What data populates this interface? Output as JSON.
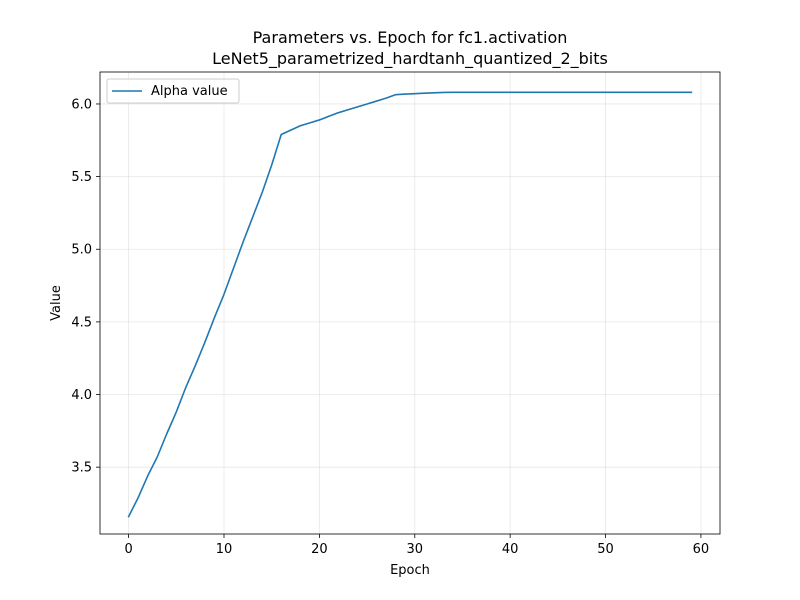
{
  "chart_data": {
    "type": "line",
    "title_lines": [
      "Parameters vs. Epoch for fc1.activation",
      "LeNet5_parametrized_hardtanh_quantized_2_bits"
    ],
    "xlabel": "Epoch",
    "ylabel": "Value",
    "xlim": [
      -3,
      62
    ],
    "ylim": [
      3.04,
      6.22
    ],
    "xticks": [
      0,
      10,
      20,
      30,
      40,
      50,
      60
    ],
    "yticks": [
      3.5,
      4.0,
      4.5,
      5.0,
      5.5,
      6.0
    ],
    "ytick_labels": [
      "3.5",
      "4.0",
      "4.5",
      "5.0",
      "5.5",
      "6.0"
    ],
    "grid": true,
    "legend_placement": "top-left",
    "series": [
      {
        "name": "Alpha value",
        "color": "#1f77b4",
        "x": [
          0,
          1,
          2,
          3,
          4,
          5,
          6,
          7,
          8,
          9,
          10,
          11,
          12,
          13,
          14,
          15,
          16,
          17,
          18,
          19,
          20,
          21,
          22,
          23,
          24,
          25,
          26,
          27,
          28,
          29,
          30,
          31,
          32,
          33,
          34,
          35,
          36,
          37,
          38,
          39,
          40,
          41,
          42,
          43,
          44,
          45,
          46,
          47,
          48,
          49,
          50,
          51,
          52,
          53,
          54,
          55,
          56,
          57,
          58,
          59
        ],
        "y": [
          3.16,
          3.29,
          3.44,
          3.57,
          3.73,
          3.88,
          4.05,
          4.2,
          4.36,
          4.53,
          4.69,
          4.87,
          5.05,
          5.22,
          5.39,
          5.58,
          5.79,
          5.82,
          5.85,
          5.87,
          5.89,
          5.915,
          5.94,
          5.96,
          5.98,
          6.0,
          6.02,
          6.04,
          6.064,
          6.068,
          6.071,
          6.074,
          6.077,
          6.079,
          6.08,
          6.08,
          6.08,
          6.08,
          6.08,
          6.08,
          6.08,
          6.08,
          6.08,
          6.08,
          6.08,
          6.08,
          6.08,
          6.08,
          6.08,
          6.08,
          6.08,
          6.08,
          6.08,
          6.08,
          6.08,
          6.08,
          6.08,
          6.08,
          6.08,
          6.08
        ]
      }
    ]
  }
}
